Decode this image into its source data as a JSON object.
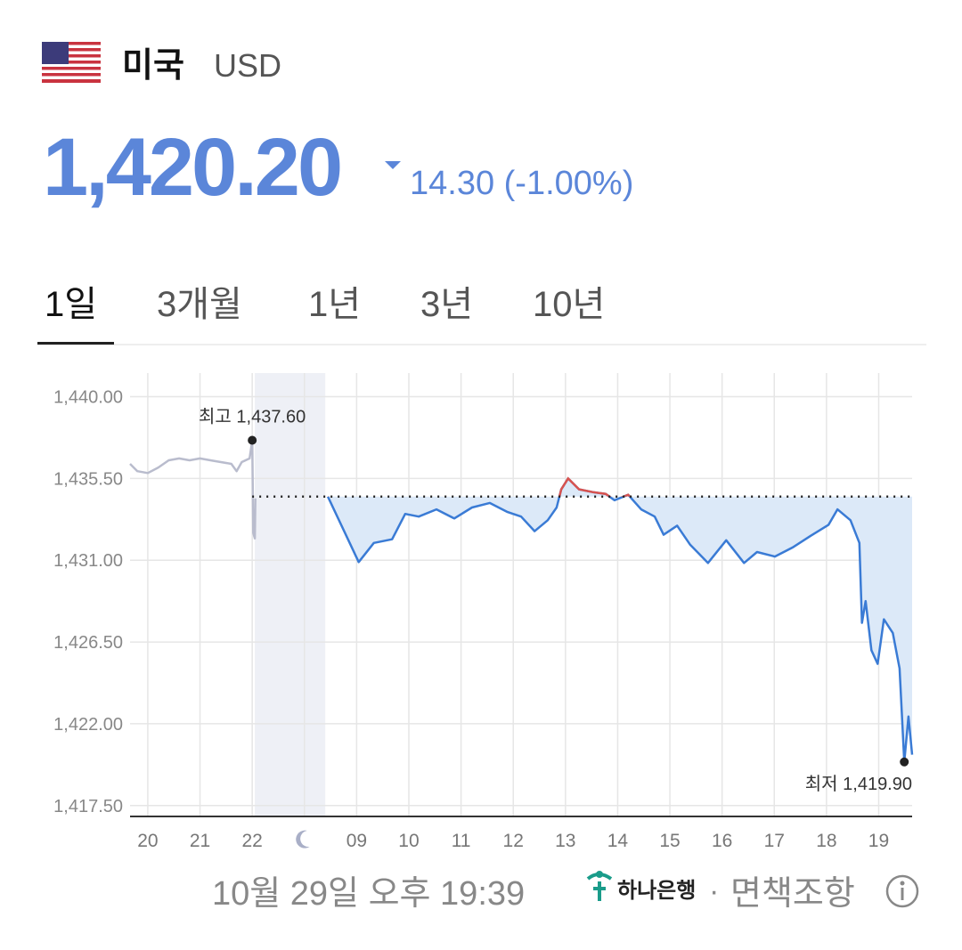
{
  "header": {
    "country": "미국",
    "currency": "USD"
  },
  "price": {
    "value": "1,420.20",
    "change": "14.30 (-1.00%)"
  },
  "tabs": [
    "1일",
    "3개월",
    "1년",
    "3년",
    "10년"
  ],
  "chart_data": {
    "type": "line",
    "xlim": [
      -0.34,
      14.64
    ],
    "ylim": [
      1416.9,
      1441.3
    ],
    "xticks": [
      {
        "value": 0,
        "label": "20"
      },
      {
        "value": 1,
        "label": "21"
      },
      {
        "value": 2,
        "label": "22"
      },
      {
        "value": 3,
        "label": null
      },
      {
        "value": 4,
        "label": "09"
      },
      {
        "value": 5,
        "label": "10"
      },
      {
        "value": 6,
        "label": "11"
      },
      {
        "value": 7,
        "label": "12"
      },
      {
        "value": 8,
        "label": "13"
      },
      {
        "value": 9,
        "label": "14"
      },
      {
        "value": 10,
        "label": "15"
      },
      {
        "value": 11,
        "label": "16"
      },
      {
        "value": 12,
        "label": "17"
      },
      {
        "value": 13,
        "label": "18"
      },
      {
        "value": 14,
        "label": "19"
      }
    ],
    "yticks": [
      {
        "value": 1440,
        "label": "1,440.00"
      },
      {
        "value": 1435.5,
        "label": "1,435.50"
      },
      {
        "value": 1431,
        "label": "1,431.00"
      },
      {
        "value": 1426.5,
        "label": "1,426.50"
      },
      {
        "value": 1422,
        "label": "1,422.00"
      },
      {
        "value": 1417.5,
        "label": "1,417.50"
      }
    ],
    "grid": true,
    "baseline": 1434.5,
    "shaded_range": [
      2.05,
      3.4
    ],
    "up_color": "#d9534f",
    "area_color": "#dce9f8",
    "series": [
      {
        "color": "#b9bccd",
        "x": [
          -0.34,
          -0.2,
          0,
          0.2,
          0.4,
          0.6,
          0.8,
          1.0,
          1.2,
          1.4,
          1.6,
          1.7,
          1.8,
          1.95,
          2.0,
          2.02,
          2.05,
          2.06
        ],
        "values": [
          1436.3,
          1435.9,
          1435.8,
          1436.1,
          1436.5,
          1436.6,
          1436.5,
          1436.6,
          1436.5,
          1436.4,
          1436.3,
          1435.9,
          1436.4,
          1436.6,
          1437.6,
          1432.5,
          1432.2,
          1434.4
        ]
      },
      {
        "color": "#3a7bd5",
        "area": true,
        "x": [
          3.45,
          4.04,
          4.33,
          4.68,
          4.93,
          5.19,
          5.53,
          5.87,
          6.21,
          6.55,
          6.89,
          7.15,
          7.41,
          7.66,
          7.83,
          7.92,
          8.05,
          8.26,
          8.52,
          8.77,
          8.94,
          9.2,
          9.45,
          9.71,
          9.88,
          10.14,
          10.39,
          10.73,
          11.08,
          11.42,
          11.67,
          12.01,
          12.35,
          12.7,
          13.04,
          13.21,
          13.46,
          13.63,
          13.68,
          13.75,
          13.86,
          13.98,
          14.1,
          14.27,
          14.4,
          14.49,
          14.57,
          14.64
        ],
        "values": [
          1434.5,
          1430.9,
          1431.95,
          1432.15,
          1433.55,
          1433.4,
          1433.8,
          1433.3,
          1433.9,
          1434.15,
          1433.65,
          1433.4,
          1432.6,
          1433.2,
          1433.9,
          1434.9,
          1435.5,
          1434.9,
          1434.75,
          1434.65,
          1434.3,
          1434.6,
          1433.8,
          1433.4,
          1432.4,
          1432.9,
          1431.85,
          1430.85,
          1432.1,
          1430.85,
          1431.45,
          1431.2,
          1431.7,
          1432.35,
          1432.95,
          1433.8,
          1433.2,
          1431.95,
          1427.55,
          1428.75,
          1426.05,
          1425.3,
          1427.75,
          1427.0,
          1425.05,
          1419.9,
          1422.4,
          1420.3
        ]
      }
    ],
    "annotations": [
      {
        "label": "최고 1,437.60",
        "x": 2.0,
        "y": 1437.6
      },
      {
        "label": "최저 1,419.90",
        "x": 14.49,
        "y": 1419.9
      }
    ]
  },
  "footer": {
    "timestamp": "10월 29일 오후 19:39",
    "bank": "하나은행",
    "separator": "·",
    "disclaimer": "면책조항"
  }
}
